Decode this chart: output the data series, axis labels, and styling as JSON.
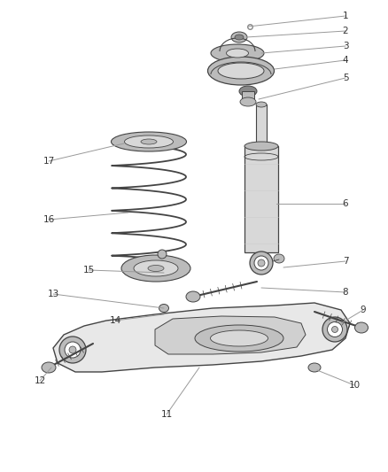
{
  "background_color": "#ffffff",
  "fig_width": 4.38,
  "fig_height": 5.33,
  "dpi": 100,
  "line_color": "#444444",
  "fill_light": "#d8d8d8",
  "fill_mid": "#bbbbbb",
  "fill_dark": "#888888",
  "text_color": "#333333",
  "label_fontsize": 7.5,
  "leader_color": "#999999",
  "part_outline": "#333333",
  "arm_fill": "#c8c8c8",
  "arm_outline": "#444444"
}
